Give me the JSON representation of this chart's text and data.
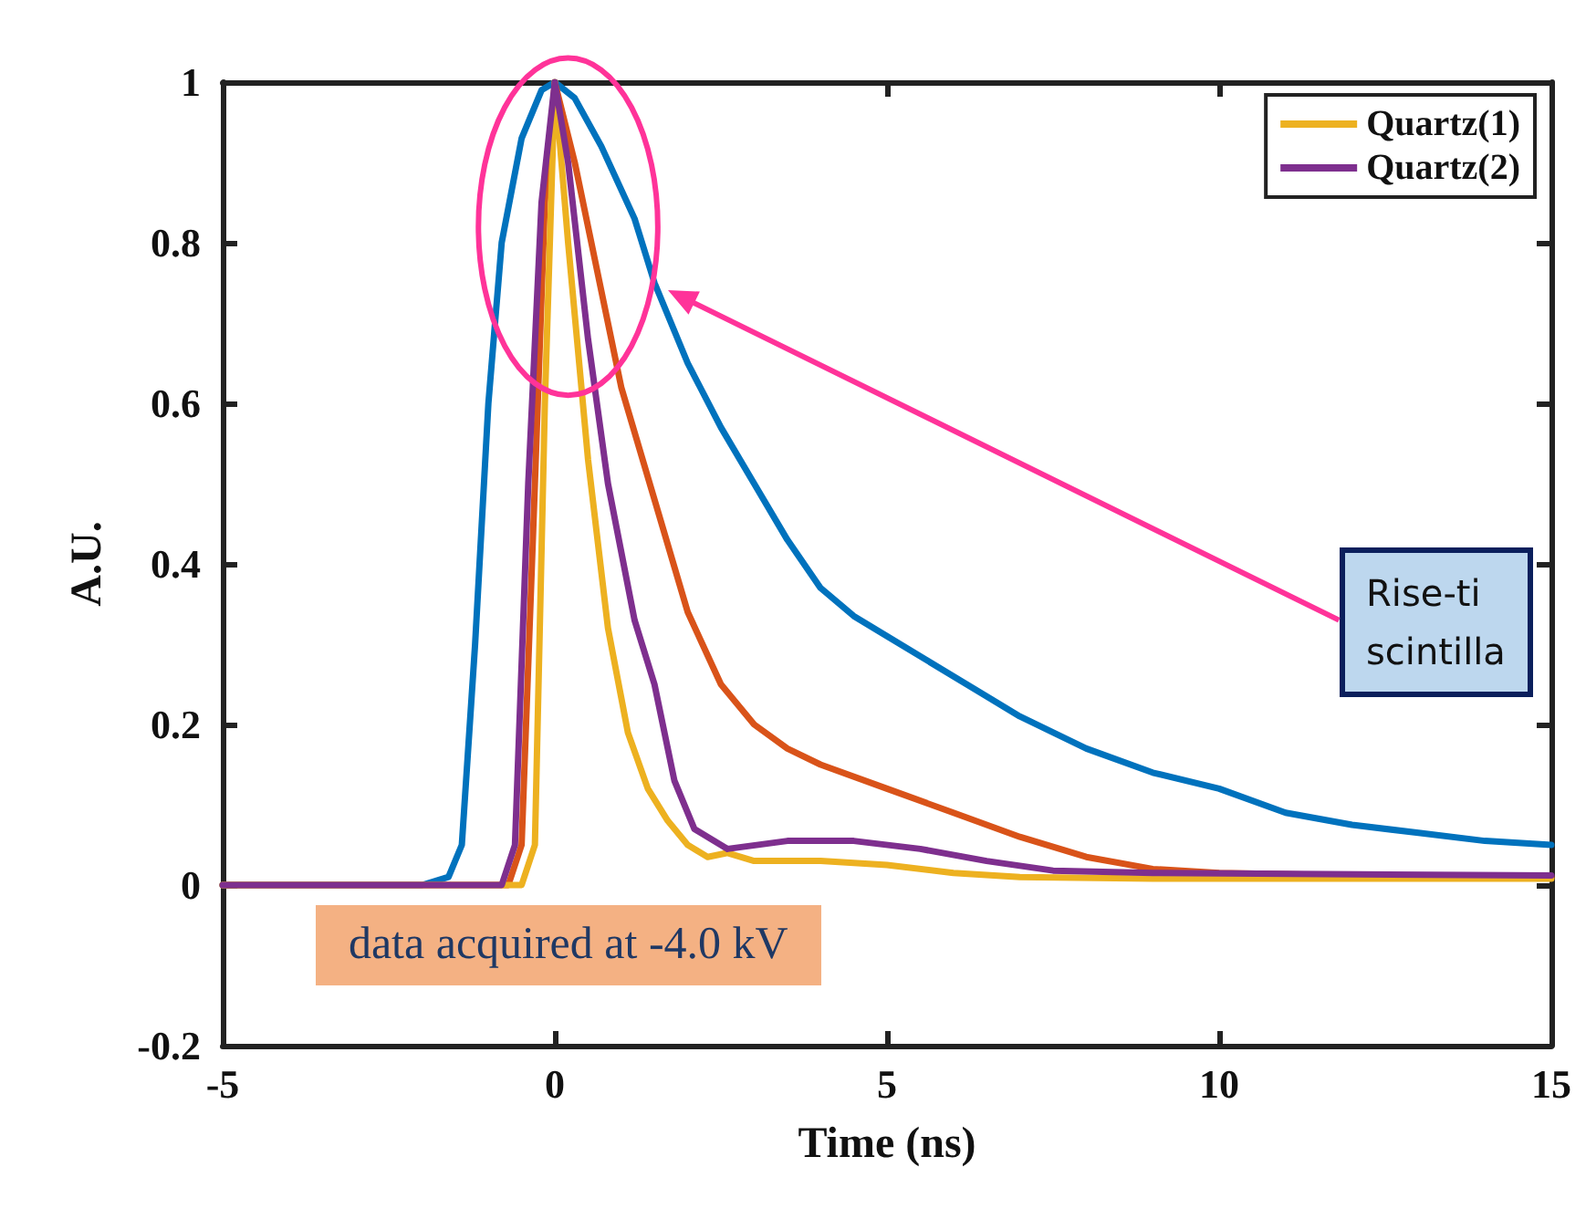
{
  "chart_data": {
    "type": "line",
    "xlabel": "Time (ns)",
    "ylabel": "A.U.",
    "xlim": [
      -5,
      15
    ],
    "xticks": [
      -5,
      0,
      5,
      10,
      15
    ],
    "ylim": [
      -0.2,
      1
    ],
    "yticks": [
      -0.2,
      0,
      0.2,
      0.4,
      0.6,
      0.8,
      1
    ],
    "grid": false,
    "legend": "top right",
    "marker": "none",
    "line_style": "solid",
    "annotations": [
      "data acquired at -4.0 kV",
      "Rise-ti\nscintilla"
    ],
    "series": [
      {
        "color": "#0072bd",
        "x": [
          -5,
          -2,
          -1.6,
          -1.4,
          -1.2,
          -1.0,
          -0.8,
          -0.5,
          -0.2,
          0,
          0.3,
          0.7,
          1.2,
          1.5,
          2,
          2.5,
          3,
          3.5,
          4,
          4.5,
          5,
          6,
          7,
          8,
          9,
          10,
          11,
          12,
          13,
          14,
          15
        ],
        "values": [
          0,
          0,
          0.01,
          0.05,
          0.3,
          0.6,
          0.8,
          0.93,
          0.99,
          1,
          0.98,
          0.92,
          0.83,
          0.75,
          0.65,
          0.57,
          0.5,
          0.43,
          0.37,
          0.335,
          0.31,
          0.26,
          0.21,
          0.17,
          0.14,
          0.12,
          0.09,
          0.075,
          0.065,
          0.055,
          0.05
        ]
      },
      {
        "color": "#d95319",
        "x": [
          -5,
          -0.7,
          -0.5,
          -0.3,
          -0.15,
          0,
          0.3,
          0.6,
          1,
          1.5,
          2,
          2.5,
          3,
          3.5,
          4,
          5,
          6,
          7,
          8,
          9,
          10,
          12,
          15
        ],
        "values": [
          0,
          0,
          0.05,
          0.5,
          0.85,
          1,
          0.9,
          0.78,
          0.62,
          0.48,
          0.34,
          0.25,
          0.2,
          0.17,
          0.15,
          0.12,
          0.09,
          0.06,
          0.035,
          0.02,
          0.015,
          0.012,
          0.01
        ]
      },
      {
        "name": "Quartz(1)",
        "color": "#edb120",
        "x": [
          -5,
          -0.5,
          -0.3,
          -0.15,
          0,
          0.2,
          0.5,
          0.8,
          1.1,
          1.4,
          1.7,
          2.0,
          2.3,
          2.6,
          3,
          4,
          5,
          6,
          7,
          9,
          15
        ],
        "values": [
          0,
          0,
          0.05,
          0.6,
          1,
          0.8,
          0.53,
          0.32,
          0.19,
          0.12,
          0.08,
          0.05,
          0.035,
          0.04,
          0.03,
          0.03,
          0.025,
          0.015,
          0.01,
          0.008,
          0.008
        ]
      },
      {
        "name": "Quartz(2)",
        "color": "#7e2f8e",
        "x": [
          -5,
          -0.8,
          -0.6,
          -0.4,
          -0.2,
          0,
          0.2,
          0.5,
          0.8,
          1.2,
          1.5,
          1.8,
          2.1,
          2.6,
          3.5,
          4.5,
          5.5,
          6.5,
          7.5,
          9,
          15
        ],
        "values": [
          0,
          0,
          0.05,
          0.5,
          0.85,
          1,
          0.9,
          0.68,
          0.5,
          0.33,
          0.25,
          0.13,
          0.07,
          0.045,
          0.055,
          0.055,
          0.045,
          0.03,
          0.018,
          0.015,
          0.012
        ]
      }
    ]
  }
}
